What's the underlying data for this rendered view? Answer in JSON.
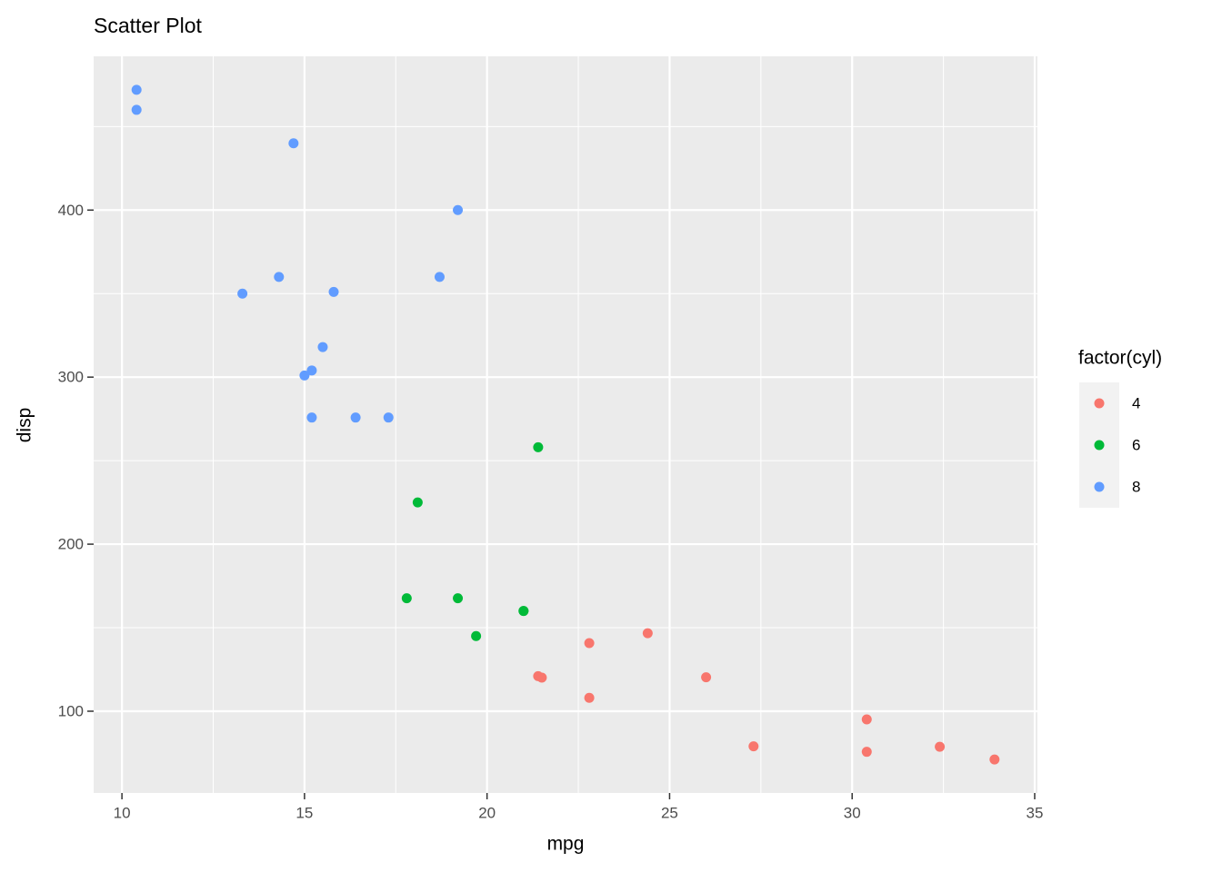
{
  "chart_data": {
    "type": "scatter",
    "title": "Scatter Plot",
    "x_label": "mpg",
    "y_label": "disp",
    "legend_title": "factor(cyl)",
    "legend_position": "right",
    "xlim": [
      9.225,
      35.075
    ],
    "ylim": [
      51.055,
      492.045
    ],
    "xticks": [
      10,
      15,
      20,
      25,
      30,
      35
    ],
    "yticks": [
      100,
      200,
      300,
      400
    ],
    "minor_xticks": [
      12.5,
      17.5,
      22.5,
      27.5,
      32.5
    ],
    "minor_yticks": [
      150,
      250,
      350,
      450
    ],
    "grid": true,
    "series": [
      {
        "name": "4",
        "color": "#F8766D",
        "x": [
          22.8,
          24.4,
          22.8,
          32.4,
          30.4,
          33.9,
          21.5,
          27.3,
          26.0,
          30.4,
          21.4
        ],
        "values": [
          108,
          146.7,
          140.8,
          78.7,
          75.7,
          71.1,
          120.1,
          79,
          120.3,
          95.1,
          121
        ]
      },
      {
        "name": "6",
        "color": "#00BA38",
        "x": [
          21.0,
          21.0,
          21.4,
          18.1,
          19.2,
          17.8,
          19.7
        ],
        "values": [
          160,
          160,
          258,
          225,
          167.6,
          167.6,
          145
        ]
      },
      {
        "name": "8",
        "color": "#619CFF",
        "x": [
          18.7,
          14.3,
          16.4,
          17.3,
          15.2,
          10.4,
          10.4,
          14.7,
          15.5,
          15.2,
          13.3,
          19.2,
          15.8,
          15.0
        ],
        "values": [
          360,
          360,
          275.8,
          275.8,
          275.8,
          472,
          460,
          440,
          318,
          304,
          350,
          400,
          351,
          301
        ]
      }
    ]
  }
}
